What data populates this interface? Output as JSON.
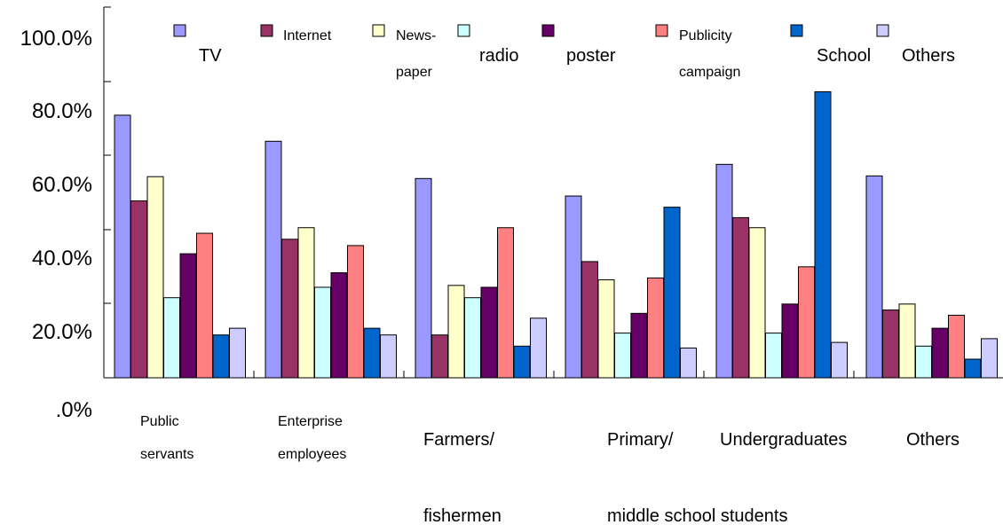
{
  "chart_data": {
    "type": "bar",
    "title": "",
    "xlabel": "",
    "ylabel": "",
    "ylim": [
      0,
      80
    ],
    "ytick_labels": [
      ".0%",
      "20.0%",
      "40.0%",
      "60.0%",
      "80.0%",
      "100.0%"
    ],
    "categories": [
      [
        "Public",
        "servants"
      ],
      [
        "Enterprise",
        "employees"
      ],
      [
        "Farmers/",
        "fishermen"
      ],
      [
        "Primary/",
        "middle school students"
      ],
      [
        "Undergraduates"
      ],
      [
        "Others"
      ]
    ],
    "series": [
      {
        "name": "TV",
        "color": "#9999FF",
        "values": [
          70.5,
          63.5,
          53.5,
          48.8,
          57.3,
          54.2
        ]
      },
      {
        "name": [
          "Internet"
        ],
        "color": "#993366",
        "values": [
          47.5,
          37.2,
          11.5,
          31.2,
          43.0,
          18.2
        ]
      },
      {
        "name": [
          "News-",
          "paper"
        ],
        "color": "#FFFFCC",
        "values": [
          54.0,
          40.3,
          24.8,
          26.3,
          40.3,
          19.8
        ]
      },
      {
        "name": [
          "radio"
        ],
        "color": "#CCFFFF",
        "values": [
          21.5,
          24.3,
          21.5,
          12.0,
          12.0,
          8.5
        ]
      },
      {
        "name": [
          "poster"
        ],
        "color": "#660066",
        "values": [
          33.3,
          28.2,
          24.3,
          17.3,
          19.8,
          13.3
        ]
      },
      {
        "name": [
          "Publicity",
          "campaign"
        ],
        "color": "#FF8080",
        "values": [
          38.8,
          35.5,
          40.3,
          26.8,
          29.8,
          16.8
        ]
      },
      {
        "name": [
          "School"
        ],
        "color": "#0066CC",
        "values": [
          11.5,
          13.3,
          8.5,
          45.8,
          76.8,
          5.0
        ]
      },
      {
        "name": [
          "Others"
        ],
        "color": "#CCCCFF",
        "values": [
          13.3,
          11.5,
          16.0,
          8.0,
          9.5,
          10.5
        ]
      }
    ],
    "grid": false,
    "legend_position": "top"
  }
}
